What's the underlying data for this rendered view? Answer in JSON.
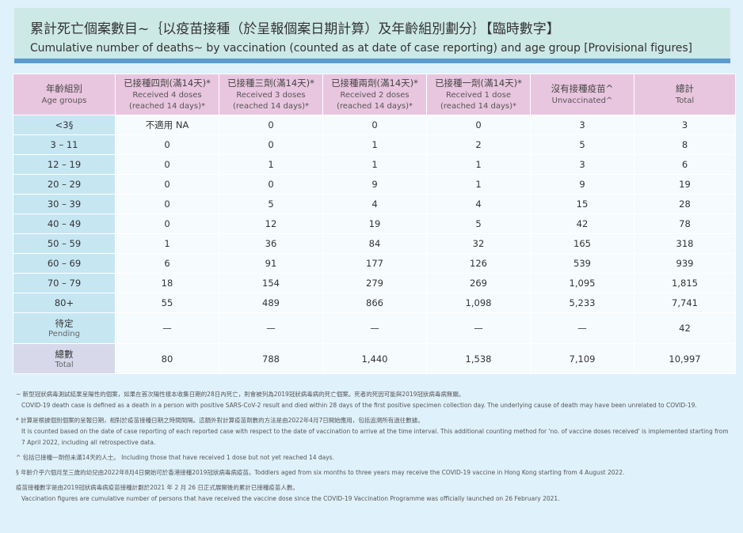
{
  "title": {
    "zh": "累計死亡個案數目~｛以疫苗接種（於呈報個案日期計算）及年齡組別劃分｝【臨時數字】",
    "en": "Cumulative number of deaths~ by vaccination (counted as at date of case reporting) and age group [Provisional figures]"
  },
  "headers": [
    {
      "zh": "年齡組別",
      "en": "Age groups"
    },
    {
      "zh": "已接種四劑(滿14天)*",
      "en": "Received 4 doses",
      "en2": "(reached 14 days)*"
    },
    {
      "zh": "已接種三劑(滿14天)*",
      "en": "Received 3 doses",
      "en2": "(reached 14 days)*"
    },
    {
      "zh": "已接種兩劑(滿14天)*",
      "en": "Received 2 doses",
      "en2": "(reached 14 days)*"
    },
    {
      "zh": "已接種一劑(滿14天)*",
      "en": "Received 1 dose",
      "en2": "(reached 14 days)*"
    },
    {
      "zh": "沒有接種疫苗^",
      "en": "Unvaccinated^"
    },
    {
      "zh": "總計",
      "en": "Total"
    }
  ],
  "rows": [
    {
      "age": "<3§",
      "v": [
        "不適用 NA",
        "0",
        "0",
        "0",
        "3",
        "3"
      ]
    },
    {
      "age": "3 – 11",
      "v": [
        "0",
        "0",
        "1",
        "2",
        "5",
        "8"
      ]
    },
    {
      "age": "12 – 19",
      "v": [
        "0",
        "1",
        "1",
        "1",
        "3",
        "6"
      ]
    },
    {
      "age": "20 – 29",
      "v": [
        "0",
        "0",
        "9",
        "1",
        "9",
        "19"
      ]
    },
    {
      "age": "30 – 39",
      "v": [
        "0",
        "5",
        "4",
        "4",
        "15",
        "28"
      ]
    },
    {
      "age": "40 – 49",
      "v": [
        "0",
        "12",
        "19",
        "5",
        "42",
        "78"
      ]
    },
    {
      "age": "50 – 59",
      "v": [
        "1",
        "36",
        "84",
        "32",
        "165",
        "318"
      ]
    },
    {
      "age": "60 – 69",
      "v": [
        "6",
        "91",
        "177",
        "126",
        "539",
        "939"
      ]
    },
    {
      "age": "70 – 79",
      "v": [
        "18",
        "154",
        "279",
        "269",
        "1,095",
        "1,815"
      ]
    },
    {
      "age": "80+",
      "v": [
        "55",
        "489",
        "866",
        "1,098",
        "5,233",
        "7,741"
      ]
    }
  ],
  "pending": {
    "zh": "待定",
    "en": "Pending",
    "v": [
      "—",
      "—",
      "—",
      "—",
      "—",
      "42"
    ]
  },
  "total": {
    "zh": "總數",
    "en": "Total",
    "v": [
      "80",
      "788",
      "1,440",
      "1,538",
      "7,109",
      "10,997"
    ]
  },
  "notes": [
    {
      "zh": "~ 新型冠狀病毒測試結果呈陽性的個案，如果在首次陽性樣本收集日期的28日內死亡，則會被列為2019冠狀病毒病的死亡個案。死者的死因可能與2019冠狀病毒病無關。",
      "en": "COVID-19 death case is defined as a death in a person with positive SARS-CoV-2 result and died within 28 days of the first positive specimen collection day.  The underlying cause of death may have been unrelated to COVID-19."
    },
    {
      "zh": "* 計算是根據個別個案的呈報日期，相對於疫苗接種日期之時間間隔。這額外對計算疫苗劑數的方法是由2022年4月7日開始應用，包括追溯所有過往數據。",
      "en": "It is counted based on the date of case reporting of each reported case with respect to the date of vaccination to arrive at the time interval.  This additional counting method for 'no. of vaccine doses received' is implemented starting from 7 April 2022, including all retrospective data."
    },
    {
      "zh": "^ 包括已接種一劑但未滿14天的人士。 Including those that have received 1 dose but not yet reached 14 days."
    },
    {
      "zh": "§ 年齡介乎六個月至三歲的幼兒由2022年8月4日開始可於香港接種2019冠狀病毒病疫苗。Toddlers aged from six months to three years may receive the COVID-19 vaccine in Hong Kong starting from 4 August 2022."
    },
    {
      "zh": "疫苗接種數字是由2019冠狀病毒病疫苗接種計劃於2021 年 2 月 26 日正式展開後的累計已接種疫苗人數。",
      "en": "Vaccination figures are cumulative number of persons that have received the vaccine dose since the COVID-19 Vaccination Programme was officially launched on 26 February 2021."
    }
  ]
}
